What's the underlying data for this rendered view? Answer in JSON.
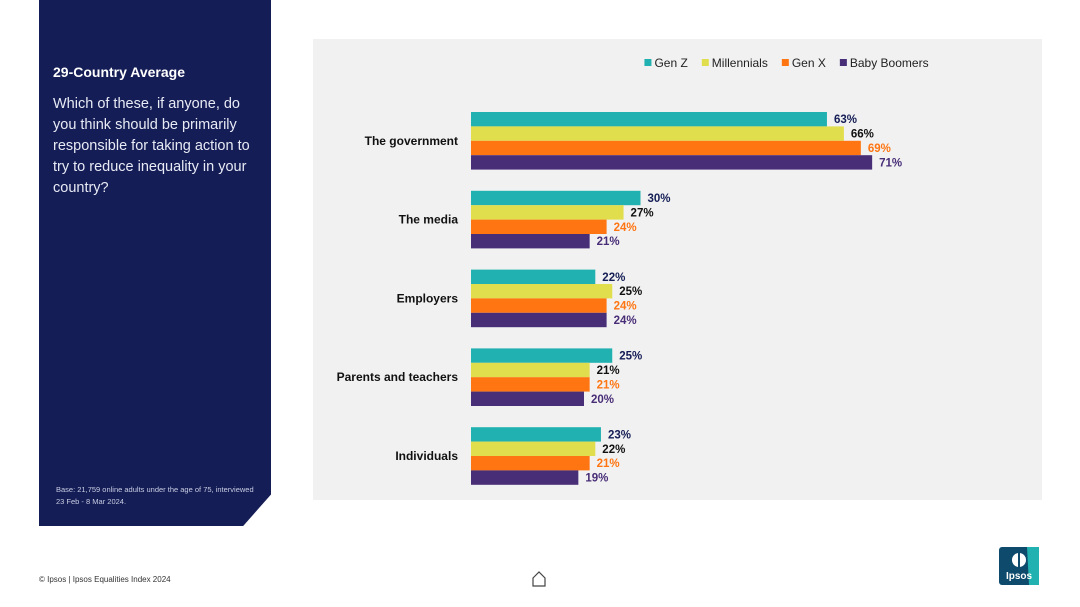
{
  "sidebar": {
    "heading": "29-Country Average",
    "question": "Which of these, if anyone, do you think should be primarily responsible for taking action to try to reduce inequality in your country?",
    "base_note": "Base: 21,759 online adults under the age of 75, interviewed 23 Feb - 8 Mar 2024."
  },
  "footer": {
    "copyright": "© Ipsos | Ipsos Equalities Index 2024"
  },
  "logo": {
    "text": "Ipsos"
  },
  "chart_data": {
    "type": "bar",
    "orientation": "horizontal",
    "title": "",
    "legend_position": "top",
    "categories": [
      "The government",
      "The media",
      "Employers",
      "Parents and teachers",
      "Individuals"
    ],
    "series": [
      {
        "name": "Gen Z",
        "color": "#21b1b0",
        "label_color": "#141d55",
        "values": [
          63,
          30,
          22,
          25,
          23
        ]
      },
      {
        "name": "Millennials",
        "color": "#e1de4e",
        "label_color": "#111111",
        "values": [
          66,
          27,
          25,
          21,
          22
        ]
      },
      {
        "name": "Gen X",
        "color": "#ff7512",
        "label_color": "#ff7512",
        "values": [
          69,
          24,
          24,
          21,
          21
        ]
      },
      {
        "name": "Baby Boomers",
        "color": "#482d77",
        "label_color": "#482d77",
        "values": [
          71,
          21,
          24,
          20,
          19
        ]
      }
    ],
    "value_suffix": "%",
    "xlim": [
      0,
      100
    ]
  }
}
